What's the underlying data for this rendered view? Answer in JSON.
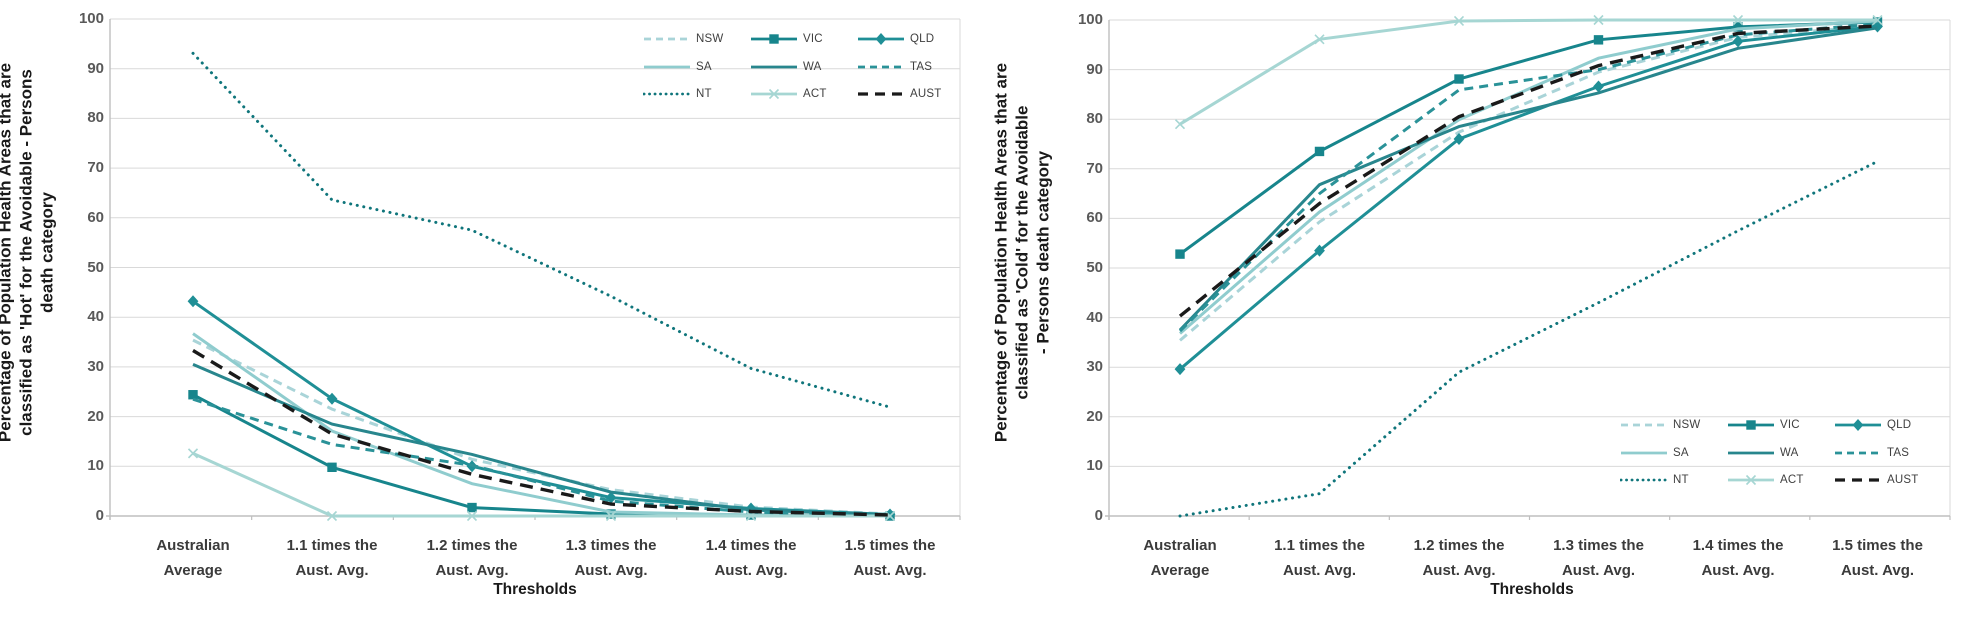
{
  "figure": {
    "background": "#ffffff",
    "grid_color": "#d9d9d9",
    "axis_color": "#bfbfbf",
    "tick_label_color": "#595959",
    "category_label_color": "#3b3b3b",
    "title_color": "#1a1a1a",
    "legend_label_color": "#404040"
  },
  "chart_data": [
    {
      "type": "line",
      "title": "Percentage of Population Health Areas that are classified as 'Hot' for the Avoidable - Persons death category",
      "title_lines": [
        "Percentage of Population Health Areas that are",
        "classified as 'Hot' for the Avoidable - Persons",
        "death category"
      ],
      "xlabel": "Thresholds",
      "ylim": [
        0,
        100
      ],
      "y_ticks": [
        0,
        10,
        20,
        30,
        40,
        50,
        60,
        70,
        80,
        90,
        100
      ],
      "grid": true,
      "legend_position": "inside-top-right",
      "categories": [
        "Australian Average",
        "1.1 times the Aust. Avg.",
        "1.2 times the Aust. Avg.",
        "1.3 times the Aust. Avg.",
        "1.4 times the Aust. Avg.",
        "1.5 times the Aust. Avg."
      ],
      "series": [
        {
          "name": "NSW",
          "color": "#a9d4d8",
          "style": "dashed",
          "marker": "none",
          "values": [
            35.4,
            21.5,
            11.4,
            5.3,
            1.8,
            0.4
          ]
        },
        {
          "name": "VIC",
          "color": "#17858c",
          "style": "solid",
          "marker": "square",
          "values": [
            24.4,
            9.8,
            1.7,
            0.4,
            0.2,
            0
          ]
        },
        {
          "name": "QLD",
          "color": "#1f8f96",
          "style": "solid",
          "marker": "diamond",
          "values": [
            43.2,
            23.6,
            10,
            3.7,
            1.5,
            0.3
          ]
        },
        {
          "name": "SA",
          "color": "#8fccce",
          "style": "solid",
          "marker": "none",
          "values": [
            36.7,
            17.1,
            6.5,
            0.8,
            0.2,
            0
          ]
        },
        {
          "name": "WA",
          "color": "#28868d",
          "style": "solid",
          "marker": "none",
          "values": [
            30.5,
            18.5,
            12.4,
            4.8,
            1.2,
            0.2
          ]
        },
        {
          "name": "TAS",
          "color": "#2a9298",
          "style": "dashed",
          "marker": "none",
          "values": [
            23.5,
            14.4,
            10.2,
            3,
            0.8,
            0
          ]
        },
        {
          "name": "NT",
          "color": "#0f757b",
          "style": "dotted",
          "marker": "none",
          "values": [
            93.1,
            63.6,
            57.5,
            44.2,
            29.7,
            21.9
          ]
        },
        {
          "name": "ACT",
          "color": "#a6d6d3",
          "style": "solid",
          "marker": "x",
          "values": [
            12.6,
            0,
            0,
            0,
            0,
            0
          ]
        },
        {
          "name": "AUST",
          "color": "#1a1a1a",
          "style": "dashed-long",
          "marker": "none",
          "values": [
            33.3,
            16.5,
            8.4,
            2.4,
            0.9,
            0.2
          ]
        }
      ]
    },
    {
      "type": "line",
      "title": "Percentage of Population Health Areas that are classified as 'Cold' for the Avoidable - Persons death category",
      "title_lines": [
        "Percentage of Population Health Areas that are",
        "classified as 'Cold' for the Avoidable",
        "- Persons death category"
      ],
      "xlabel": "Thresholds",
      "ylim": [
        0,
        100
      ],
      "y_ticks": [
        0,
        10,
        20,
        30,
        40,
        50,
        60,
        70,
        80,
        90,
        100
      ],
      "grid": true,
      "legend_position": "inside-bottom-right",
      "categories": [
        "Australian Average",
        "1.1 times the Aust. Avg.",
        "1.2 times the Aust. Avg.",
        "1.3 times the Aust. Avg.",
        "1.4 times the Aust. Avg.",
        "1.5 times the Aust. Avg."
      ],
      "series": [
        {
          "name": "NSW",
          "color": "#a9d4d8",
          "style": "dashed",
          "marker": "none",
          "values": [
            35.4,
            59.3,
            77.4,
            89.5,
            96.5,
            98.9
          ]
        },
        {
          "name": "VIC",
          "color": "#17858c",
          "style": "solid",
          "marker": "square",
          "values": [
            52.8,
            73.5,
            88.1,
            96,
            98.6,
            99.6
          ]
        },
        {
          "name": "QLD",
          "color": "#1f8f96",
          "style": "solid",
          "marker": "diamond",
          "values": [
            29.6,
            53.5,
            76,
            86.6,
            95.7,
            98.7
          ]
        },
        {
          "name": "SA",
          "color": "#8fccce",
          "style": "solid",
          "marker": "none",
          "values": [
            36.8,
            61.3,
            79.9,
            92.3,
            98.2,
            99.8
          ]
        },
        {
          "name": "WA",
          "color": "#28868d",
          "style": "solid",
          "marker": "none",
          "values": [
            37.5,
            66.8,
            78.5,
            85.3,
            94.3,
            98.4
          ]
        },
        {
          "name": "TAS",
          "color": "#2a9298",
          "style": "dashed",
          "marker": "none",
          "values": [
            37.3,
            65,
            85.9,
            90,
            97,
            99.2
          ]
        },
        {
          "name": "NT",
          "color": "#0f757b",
          "style": "dotted",
          "marker": "none",
          "values": [
            0,
            4.5,
            29,
            43,
            57.5,
            71.5
          ]
        },
        {
          "name": "ACT",
          "color": "#a6d6d3",
          "style": "solid",
          "marker": "x",
          "values": [
            79,
            96.1,
            99.8,
            100,
            100,
            100
          ]
        },
        {
          "name": "AUST",
          "color": "#1a1a1a",
          "style": "dashed-long",
          "marker": "none",
          "values": [
            40.3,
            63,
            80.5,
            90.8,
            97.3,
            98.8
          ]
        }
      ]
    }
  ]
}
